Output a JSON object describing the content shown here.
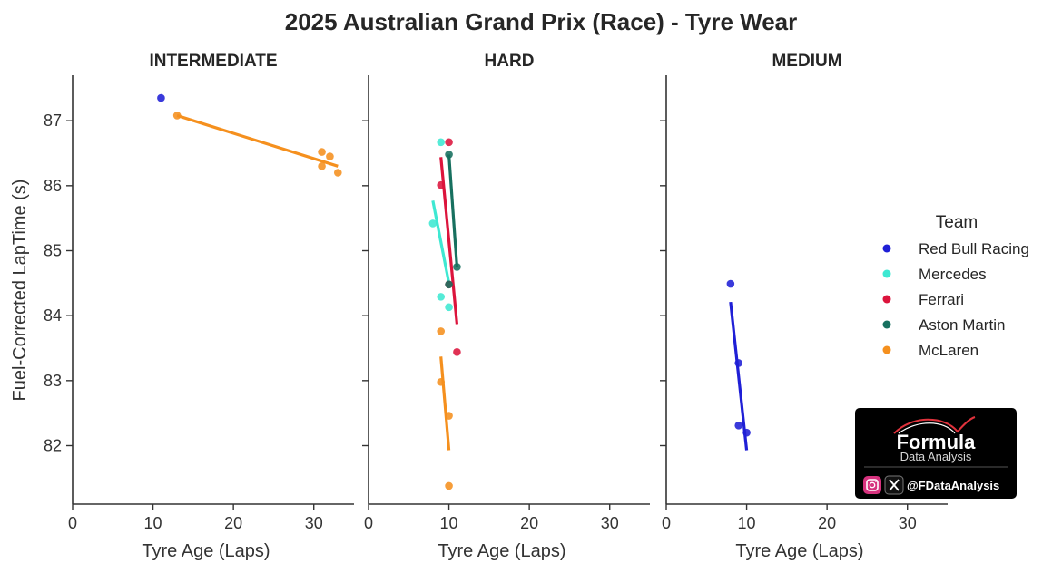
{
  "chart_data": {
    "type": "scatter",
    "title": "2025 Australian Grand Prix (Race) - Tyre Wear",
    "xlabel": "Tyre Age (Laps)",
    "ylabel": "Fuel-Corrected LapTime (s)",
    "xlim": [
      0,
      35
    ],
    "ylim": [
      81.1,
      87.7
    ],
    "xticks": [
      0,
      10,
      20,
      30
    ],
    "yticks": [
      82,
      83,
      84,
      85,
      86,
      87
    ],
    "grid": false,
    "legend": {
      "title": "Team",
      "placement": "right",
      "entries": [
        {
          "name": "Red Bull Racing",
          "color": "#1f1fd6"
        },
        {
          "name": "Mercedes",
          "color": "#3ee8d2"
        },
        {
          "name": "Ferrari",
          "color": "#dc143c"
        },
        {
          "name": "Aston Martin",
          "color": "#17705f"
        },
        {
          "name": "McLaren",
          "color": "#f5901e"
        }
      ]
    },
    "facets": [
      {
        "name": "INTERMEDIATE",
        "series": [
          {
            "name": "Red Bull Racing",
            "points": [
              [
                11,
                87.35
              ]
            ],
            "trend": null
          },
          {
            "name": "McLaren",
            "points": [
              [
                13,
                87.08
              ],
              [
                31,
                86.52
              ],
              [
                31,
                86.3
              ],
              [
                32,
                86.45
              ],
              [
                33,
                86.2
              ]
            ],
            "trend": [
              [
                13,
                87.08
              ],
              [
                33,
                86.3
              ]
            ]
          }
        ]
      },
      {
        "name": "HARD",
        "series": [
          {
            "name": "Mercedes",
            "points": [
              [
                9,
                86.67
              ],
              [
                8,
                85.42
              ],
              [
                9,
                84.29
              ],
              [
                10,
                84.13
              ]
            ],
            "trend": [
              [
                8,
                85.77
              ],
              [
                10,
                84.5
              ]
            ]
          },
          {
            "name": "Ferrari",
            "points": [
              [
                10,
                86.67
              ],
              [
                9,
                86.01
              ],
              [
                10,
                84.48
              ],
              [
                11,
                83.44
              ]
            ],
            "trend": [
              [
                9,
                86.44
              ],
              [
                11,
                83.87
              ]
            ]
          },
          {
            "name": "Aston Martin",
            "points": [
              [
                10,
                86.48
              ],
              [
                11,
                84.75
              ],
              [
                10,
                84.48
              ]
            ],
            "trend": [
              [
                10,
                86.48
              ],
              [
                11,
                84.75
              ]
            ]
          },
          {
            "name": "McLaren",
            "points": [
              [
                9,
                83.76
              ],
              [
                9,
                82.98
              ],
              [
                10,
                82.46
              ],
              [
                10,
                81.38
              ]
            ],
            "trend": [
              [
                9,
                83.37
              ],
              [
                10,
                81.93
              ]
            ]
          }
        ]
      },
      {
        "name": "MEDIUM",
        "series": [
          {
            "name": "Red Bull Racing",
            "points": [
              [
                8,
                84.49
              ],
              [
                9,
                83.27
              ],
              [
                9,
                82.31
              ],
              [
                10,
                82.2
              ]
            ],
            "trend": [
              [
                8,
                84.21
              ],
              [
                10,
                81.93
              ]
            ]
          }
        ]
      }
    ]
  },
  "badge": {
    "brand_line1": "Formula",
    "brand_line2": "Data Analysis",
    "handle": "@FDataAnalysis",
    "instagram_icon": "instagram-icon",
    "x_icon": "x-logo-icon"
  }
}
